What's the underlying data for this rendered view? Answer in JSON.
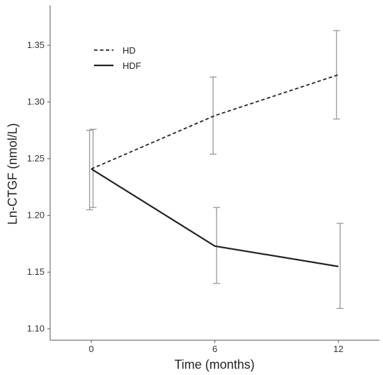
{
  "chart_data": {
    "type": "line",
    "xlabel": "Time (months)",
    "ylabel": "Ln-CTGF (nmol/L)",
    "categories": [
      "0",
      "6",
      "12"
    ],
    "x": [
      0,
      6,
      12
    ],
    "xlim": [
      -2,
      14
    ],
    "ylim": [
      1.09,
      1.385
    ],
    "yticks": [
      "1.10",
      "1.15",
      "1.20",
      "1.25",
      "1.30",
      "1.35"
    ],
    "grid": false,
    "legend_position": "top-left",
    "series": [
      {
        "name": "HD",
        "line_style": "dashed",
        "color": "#222222",
        "values": [
          1.241,
          1.288,
          1.324
        ],
        "error_low": [
          1.205,
          1.254,
          1.285
        ],
        "error_high": [
          1.275,
          1.322,
          1.363
        ]
      },
      {
        "name": "HDF",
        "line_style": "solid",
        "color": "#222222",
        "values": [
          1.241,
          1.173,
          1.155
        ],
        "error_low": [
          1.207,
          1.14,
          1.118
        ],
        "error_high": [
          1.276,
          1.207,
          1.193
        ]
      }
    ],
    "error_bar_color": "#9e9e9e"
  }
}
